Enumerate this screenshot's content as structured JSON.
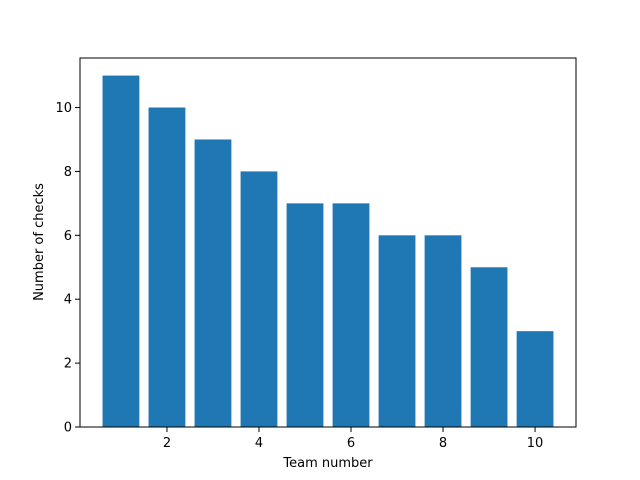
{
  "chart_data": {
    "type": "bar",
    "xlabel": "Team number",
    "ylabel": "Number of checks",
    "x": [
      1,
      2,
      3,
      4,
      5,
      6,
      7,
      8,
      9,
      10
    ],
    "values": [
      11,
      10,
      9,
      8,
      7,
      7,
      6,
      6,
      5,
      3
    ],
    "color": "#1f77b4",
    "xlim": [
      0.11,
      10.89
    ],
    "xticks": [
      2,
      4,
      6,
      8,
      10
    ],
    "ylim": [
      0,
      11.55
    ],
    "yticks": [
      0,
      2,
      4,
      6,
      8,
      10
    ],
    "grid": false
  }
}
